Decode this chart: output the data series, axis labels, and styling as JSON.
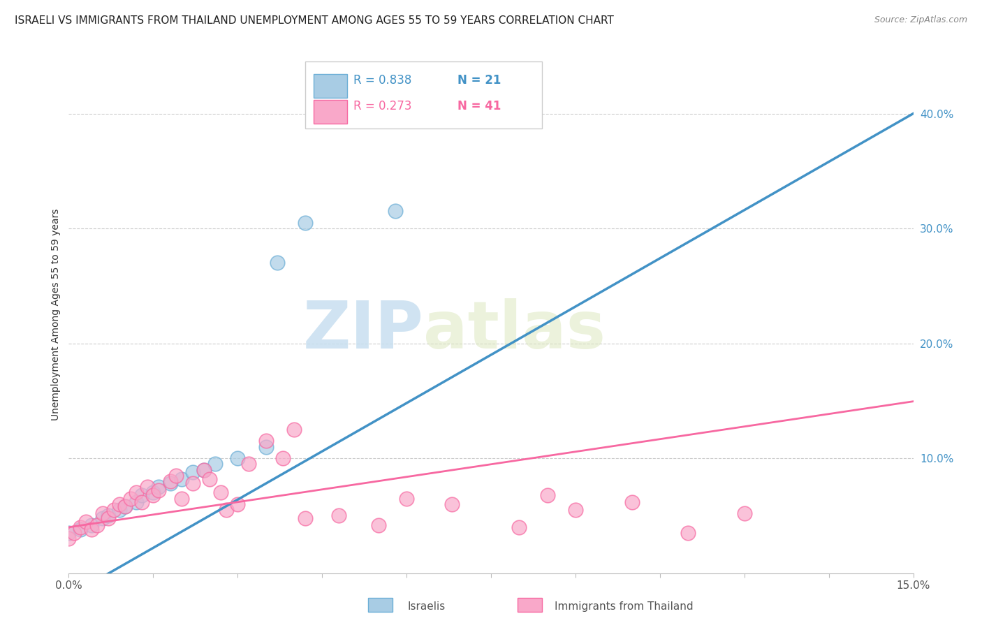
{
  "title": "ISRAELI VS IMMIGRANTS FROM THAILAND UNEMPLOYMENT AMONG AGES 55 TO 59 YEARS CORRELATION CHART",
  "source": "Source: ZipAtlas.com",
  "ylabel": "Unemployment Among Ages 55 to 59 years",
  "right_yticks": [
    "40.0%",
    "30.0%",
    "20.0%",
    "10.0%"
  ],
  "right_ytick_vals": [
    0.4,
    0.3,
    0.2,
    0.1
  ],
  "legend_r1": "R = 0.838",
  "legend_n1": "N = 21",
  "legend_r2": "R = 0.273",
  "legend_n2": "N = 41",
  "watermark_zip": "ZIP",
  "watermark_atlas": "atlas",
  "israeli_color": "#a8cce4",
  "thailand_color": "#f9a8c9",
  "israeli_edge_color": "#6baed6",
  "thailand_edge_color": "#f768a1",
  "line_israeli_color": "#4292c6",
  "line_thailand_color": "#f768a1",
  "israeli_x": [
    0.0,
    0.002,
    0.004,
    0.006,
    0.007,
    0.009,
    0.01,
    0.012,
    0.013,
    0.015,
    0.016,
    0.018,
    0.02,
    0.022,
    0.024,
    0.026,
    0.03,
    0.035,
    0.037,
    0.042,
    0.058
  ],
  "israeli_y": [
    0.035,
    0.038,
    0.042,
    0.048,
    0.05,
    0.055,
    0.058,
    0.062,
    0.068,
    0.07,
    0.075,
    0.078,
    0.082,
    0.088,
    0.09,
    0.095,
    0.1,
    0.11,
    0.27,
    0.305,
    0.315
  ],
  "thailand_x": [
    0.0,
    0.001,
    0.002,
    0.003,
    0.004,
    0.005,
    0.006,
    0.007,
    0.008,
    0.009,
    0.01,
    0.011,
    0.012,
    0.013,
    0.014,
    0.015,
    0.016,
    0.018,
    0.019,
    0.02,
    0.022,
    0.024,
    0.025,
    0.027,
    0.028,
    0.03,
    0.032,
    0.035,
    0.038,
    0.04,
    0.042,
    0.048,
    0.055,
    0.06,
    0.068,
    0.08,
    0.085,
    0.09,
    0.1,
    0.11,
    0.12
  ],
  "thailand_y": [
    0.03,
    0.035,
    0.04,
    0.045,
    0.038,
    0.042,
    0.052,
    0.048,
    0.055,
    0.06,
    0.058,
    0.065,
    0.07,
    0.062,
    0.075,
    0.068,
    0.072,
    0.08,
    0.085,
    0.065,
    0.078,
    0.09,
    0.082,
    0.07,
    0.055,
    0.06,
    0.095,
    0.115,
    0.1,
    0.125,
    0.048,
    0.05,
    0.042,
    0.065,
    0.06,
    0.04,
    0.068,
    0.055,
    0.062,
    0.035,
    0.052
  ],
  "xlim": [
    0.0,
    0.15
  ],
  "ylim": [
    0.0,
    0.45
  ],
  "xtick_positions": [
    0.0,
    0.015,
    0.03,
    0.045,
    0.06,
    0.075,
    0.09,
    0.105,
    0.12,
    0.135,
    0.15
  ],
  "title_fontsize": 11,
  "axis_label_fontsize": 10,
  "tick_fontsize": 10,
  "right_tick_color": "#4292c6",
  "background_color": "#ffffff",
  "grid_color": "#cccccc",
  "israeli_line_intercept": -0.02,
  "israeli_line_slope": 2.8,
  "thailand_line_intercept": 0.04,
  "thailand_line_slope": 0.73
}
